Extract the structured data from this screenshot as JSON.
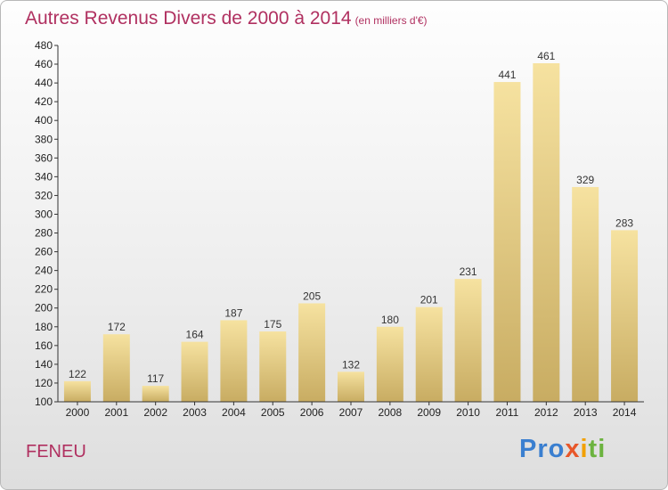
{
  "chart_data": {
    "type": "bar",
    "title": "Autres Revenus Divers de 2000 à 2014",
    "subtitle": "(en milliers d'€)",
    "categories": [
      "2000",
      "2001",
      "2002",
      "2003",
      "2004",
      "2005",
      "2006",
      "2007",
      "2008",
      "2009",
      "2010",
      "2011",
      "2012",
      "2013",
      "2014"
    ],
    "values": [
      122,
      172,
      117,
      164,
      187,
      175,
      205,
      132,
      180,
      201,
      231,
      441,
      461,
      329,
      283
    ],
    "ylim": [
      100,
      480
    ],
    "yticks": [
      100,
      120,
      140,
      160,
      180,
      200,
      220,
      240,
      260,
      280,
      300,
      320,
      340,
      360,
      380,
      400,
      420,
      440,
      460,
      480
    ],
    "grid": false,
    "bar_color": "#e6cd82"
  },
  "footer": {
    "place": "FENEU",
    "logo": {
      "p1": "Pro",
      "p2": "x",
      "p3": "i",
      "p4": "ti"
    }
  }
}
